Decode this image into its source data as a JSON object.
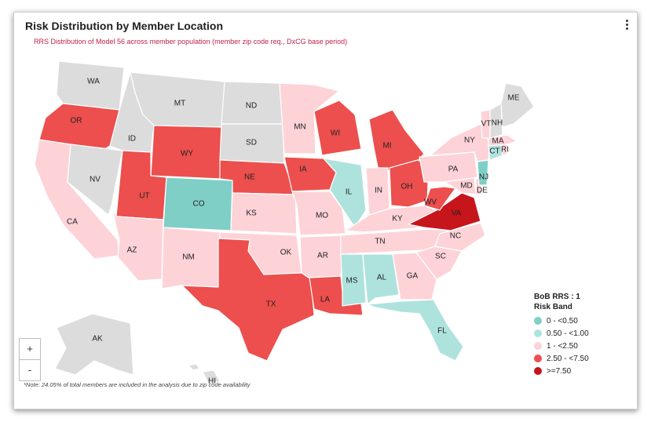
{
  "widget": {
    "title": "Risk Distribution by Member Location",
    "subtitle": "RRS Distribution of Model 56 across member population (member zip code req., DxCG base period)",
    "menu_icon": "more-vertical-icon"
  },
  "colors": {
    "no_data": "#dcdcdc",
    "band_0": "#7fcfc6",
    "band_1": "#aee3dd",
    "band_2": "#fdd3d8",
    "band_3": "#ec4f4d",
    "band_4": "#c6151b"
  },
  "legend": {
    "title_line1": "BoB RRS : 1",
    "title_line2": "Risk Band",
    "bands": [
      {
        "label": "0 - <0.50",
        "color": "#7fcfc6"
      },
      {
        "label": "0.50 - <1.00",
        "color": "#aee3dd"
      },
      {
        "label": "1 - <2.50",
        "color": "#fdd3d8"
      },
      {
        "label": "2.50 - <7.50",
        "color": "#ec4f4d"
      },
      {
        "label": ">=7.50",
        "color": "#c6151b"
      }
    ]
  },
  "zoom": {
    "plus": "+",
    "minus": "-"
  },
  "note": "*Note: 24.05% of total members are included in the analysis due to zip code availability",
  "states": [
    {
      "code": "WA",
      "band": null
    },
    {
      "code": "OR",
      "band": 3
    },
    {
      "code": "CA",
      "band": 2
    },
    {
      "code": "NV",
      "band": null
    },
    {
      "code": "ID",
      "band": null
    },
    {
      "code": "MT",
      "band": null
    },
    {
      "code": "WY",
      "band": 3
    },
    {
      "code": "UT",
      "band": 3
    },
    {
      "code": "AZ",
      "band": 2
    },
    {
      "code": "CO",
      "band": 0
    },
    {
      "code": "NM",
      "band": 2
    },
    {
      "code": "ND",
      "band": null
    },
    {
      "code": "SD",
      "band": null
    },
    {
      "code": "NE",
      "band": 3
    },
    {
      "code": "KS",
      "band": 2
    },
    {
      "code": "OK",
      "band": 2
    },
    {
      "code": "TX",
      "band": 3
    },
    {
      "code": "MN",
      "band": 2
    },
    {
      "code": "IA",
      "band": 3
    },
    {
      "code": "MO",
      "band": 2
    },
    {
      "code": "AR",
      "band": 2
    },
    {
      "code": "LA",
      "band": 3
    },
    {
      "code": "WI",
      "band": 3
    },
    {
      "code": "IL",
      "band": 1
    },
    {
      "code": "MI",
      "band": 3
    },
    {
      "code": "IN",
      "band": 2
    },
    {
      "code": "OH",
      "band": 3
    },
    {
      "code": "KY",
      "band": 2
    },
    {
      "code": "TN",
      "band": 2
    },
    {
      "code": "MS",
      "band": 1
    },
    {
      "code": "AL",
      "band": 1
    },
    {
      "code": "GA",
      "band": 2
    },
    {
      "code": "FL",
      "band": 1
    },
    {
      "code": "SC",
      "band": 2
    },
    {
      "code": "NC",
      "band": 2
    },
    {
      "code": "VA",
      "band": 4
    },
    {
      "code": "WV",
      "band": 3
    },
    {
      "code": "MD",
      "band": 2
    },
    {
      "code": "DE",
      "band": 2
    },
    {
      "code": "PA",
      "band": 2
    },
    {
      "code": "NJ",
      "band": 0
    },
    {
      "code": "NY",
      "band": 2
    },
    {
      "code": "CT",
      "band": 1
    },
    {
      "code": "RI",
      "band": 2
    },
    {
      "code": "MA",
      "band": 2
    },
    {
      "code": "VT",
      "band": 2
    },
    {
      "code": "NH",
      "band": null
    },
    {
      "code": "ME",
      "band": null
    },
    {
      "code": "AK",
      "band": null
    },
    {
      "code": "HI",
      "band": null
    }
  ]
}
